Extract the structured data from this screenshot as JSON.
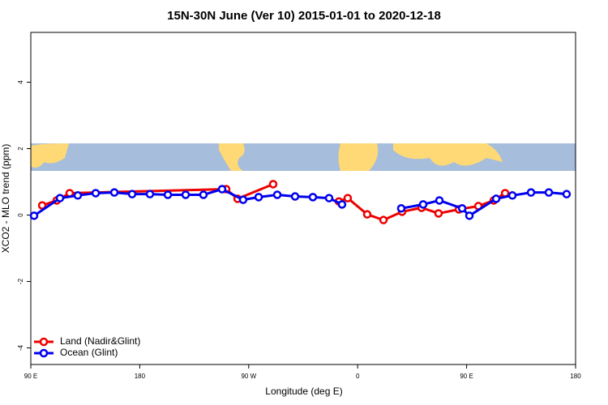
{
  "chart_data": {
    "type": "line",
    "title": "15N-30N June (Ver 10)   2015-01-01 to 2020-12-18",
    "x_label": "Longitude (deg E)",
    "y_label": "XCO2 - MLO trend (ppm)",
    "xlim": [
      90,
      540
    ],
    "xticks": [
      {
        "value": 90,
        "label": "90 E"
      },
      {
        "value": 180,
        "label": "180"
      },
      {
        "value": 270,
        "label": "90 W"
      },
      {
        "value": 360,
        "label": "0"
      },
      {
        "value": 450,
        "label": "90 E"
      },
      {
        "value": 540,
        "label": "180"
      }
    ],
    "ylim": [
      -4.5,
      5.5
    ],
    "yticks": [
      -4,
      -2,
      0,
      2,
      4
    ],
    "legend": "bottom-left",
    "series": [
      {
        "name": "Land (Nadir&Glint)",
        "color": "#ee0000",
        "x": [
          99.4,
          111.4,
          122.1,
          251.4,
          260.8,
          290.2,
          null,
          344.5,
          351.8,
          367.9,
          381.3,
          396.7,
          412.8,
          426.8,
          443.6,
          459.7,
          472.4,
          481.8
        ],
        "values": [
          0.29,
          0.44,
          0.66,
          0.78,
          0.49,
          0.93,
          null,
          0.41,
          0.51,
          0.02,
          -0.15,
          0.1,
          0.22,
          0.05,
          0.17,
          0.27,
          0.44,
          0.66
        ]
      },
      {
        "name": "Ocean (Glint)",
        "color": "#0000ee",
        "x": [
          92.7,
          114.1,
          128.8,
          143.6,
          159.0,
          173.7,
          188.4,
          203.2,
          217.9,
          232.6,
          248.0,
          265.4,
          278.2,
          293.6,
          308.3,
          323.0,
          336.4,
          347.1,
          null,
          396.0,
          414.1,
          427.5,
          446.3,
          452.3,
          474.4,
          487.8,
          503.2,
          517.9,
          532.6
        ],
        "values": [
          -0.02,
          0.51,
          0.59,
          0.66,
          0.68,
          0.63,
          0.63,
          0.61,
          0.61,
          0.61,
          0.78,
          0.46,
          0.54,
          0.61,
          0.56,
          0.54,
          0.51,
          0.32,
          null,
          0.2,
          0.32,
          0.44,
          0.2,
          -0.02,
          0.49,
          0.59,
          0.68,
          0.68,
          0.63
        ]
      }
    ]
  }
}
